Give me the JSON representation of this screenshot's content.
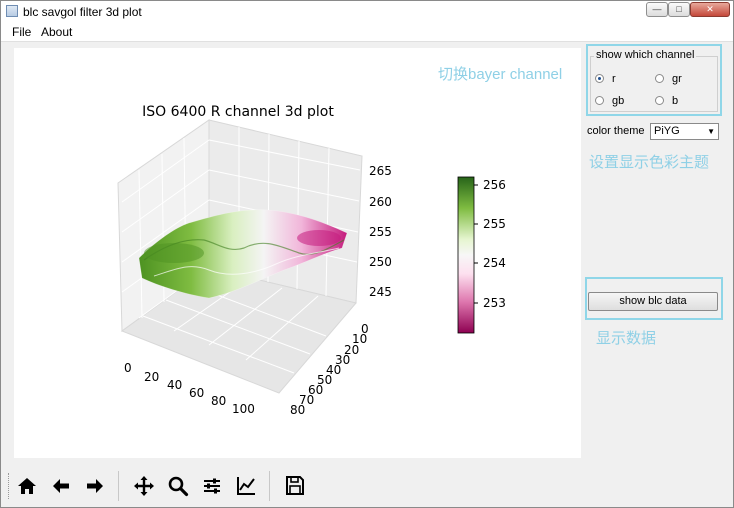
{
  "window": {
    "title": "blc savgol filter 3d plot",
    "buttons": {
      "minimize": "—",
      "maximize": "□",
      "close": "✕"
    }
  },
  "menu": {
    "items": [
      "File",
      "About"
    ]
  },
  "plot": {
    "title": "ISO 6400 R channel 3d plot",
    "z_ticks": [
      "265",
      "260",
      "255",
      "250",
      "245"
    ],
    "x_ticks": [
      "0",
      "20",
      "40",
      "60",
      "80",
      "100"
    ],
    "y_ticks": [
      "0",
      "10",
      "20",
      "30",
      "40",
      "50",
      "60",
      "70",
      "80"
    ],
    "colorbar_ticks": [
      "256",
      "255",
      "254",
      "253"
    ]
  },
  "annotations": {
    "bayer": "切换bayer channel",
    "theme": "设置显示色彩主题",
    "data": "显示数据"
  },
  "channel_group": {
    "title": "show which channel",
    "options": [
      {
        "label": "r",
        "selected": true
      },
      {
        "label": "gr",
        "selected": false
      },
      {
        "label": "gb",
        "selected": false
      },
      {
        "label": "b",
        "selected": false
      }
    ]
  },
  "color_theme": {
    "label": "color theme",
    "value": "PiYG"
  },
  "show_data_button": "show blc data",
  "toolbar": {
    "icons": [
      "home-icon",
      "back-arrow-icon",
      "forward-arrow-icon",
      "pan-icon",
      "zoom-icon",
      "subplots-icon",
      "axes-edit-icon",
      "save-icon"
    ]
  },
  "colors": {
    "note": "#8fd0e6",
    "accent_box": "#8fd6e8",
    "green_dark": "#3f7f1f",
    "magenta_dark": "#b0106a"
  }
}
